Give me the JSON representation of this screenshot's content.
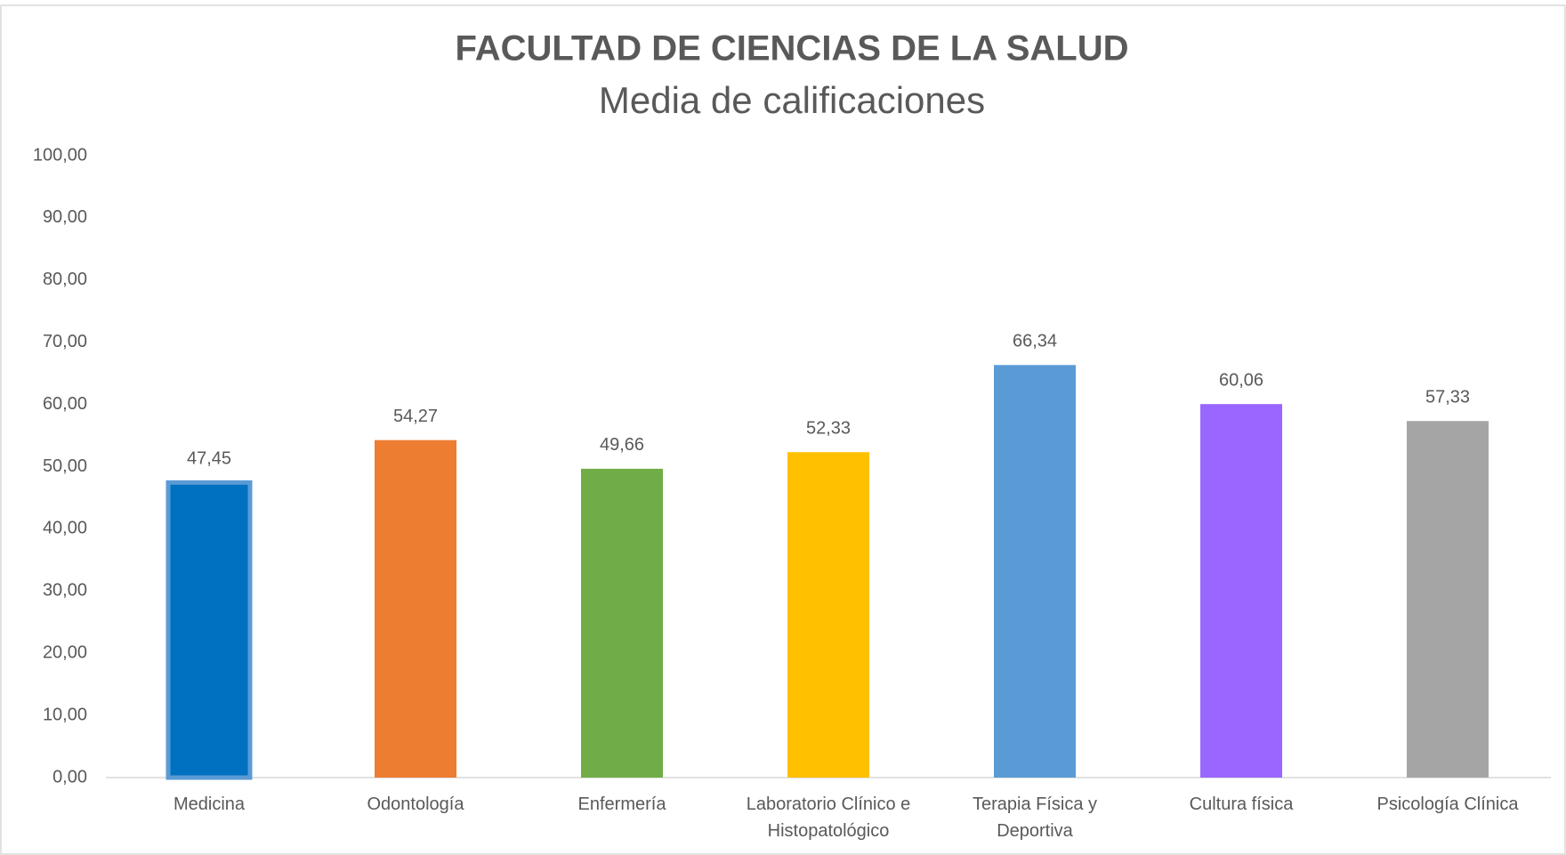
{
  "chart_data": {
    "type": "bar",
    "title": "FACULTAD DE CIENCIAS DE LA SALUD",
    "subtitle": "Media de calificaciones",
    "categories": [
      "Medicina",
      "Odontología",
      "Enfermería",
      "Laboratorio Clínico e Histopatológico",
      "Terapia Física y Deportiva",
      "Cultura física",
      "Psicología Clínica"
    ],
    "values": [
      47.45,
      54.27,
      49.66,
      52.33,
      66.34,
      60.06,
      57.33
    ],
    "value_labels": [
      "47,45",
      "54,27",
      "49,66",
      "52,33",
      "66,34",
      "60,06",
      "57,33"
    ],
    "colors": [
      "#0070c0",
      "#ed7d31",
      "#70ad47",
      "#ffc000",
      "#5b9bd5",
      "#9966ff",
      "#a5a5a5"
    ],
    "ylim": [
      0,
      100
    ],
    "yticks": [
      {
        "value": 0,
        "label": "0,00"
      },
      {
        "value": 10,
        "label": "10,00"
      },
      {
        "value": 20,
        "label": "20,00"
      },
      {
        "value": 30,
        "label": "30,00"
      },
      {
        "value": 40,
        "label": "40,00"
      },
      {
        "value": 50,
        "label": "50,00"
      },
      {
        "value": 60,
        "label": "60,00"
      },
      {
        "value": 70,
        "label": "70,00"
      },
      {
        "value": 80,
        "label": "80,00"
      },
      {
        "value": 90,
        "label": "90,00"
      },
      {
        "value": 100,
        "label": "100,00"
      }
    ],
    "grid": false
  }
}
